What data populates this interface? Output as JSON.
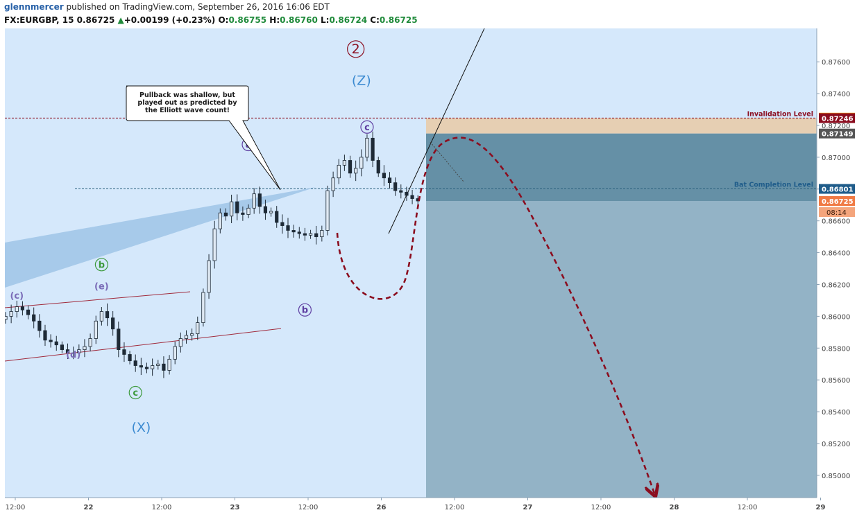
{
  "header": {
    "author": "glennmercer",
    "published": "published on TradingView.com, September 26, 2016 16:06 EDT",
    "symbol": "FX:EURGBP, 15",
    "last": "0.86725",
    "change_arrow": "▲",
    "change": "+0.00199 (+0.23%)",
    "open_label": "O:",
    "open": "0.86755",
    "high_label": "H:",
    "high": "0.86760",
    "low_label": "L:",
    "low": "0.86724",
    "close_label": "C:",
    "close": "0.86725"
  },
  "colors": {
    "plot_bg": "#d5e8fb",
    "stop_zone": "#e6cfb3",
    "target_zone": "#6590a6",
    "below_zone": "#93b3c6",
    "invalidation": "#8b0d1f",
    "bat_level": "#2a5f7d",
    "forecast": "#8b0d1f",
    "wave_purple": "#5e3ea1",
    "wave_green": "#3d9a3d",
    "wave_lavender": "#7b6db8",
    "wave_blue": "#3b8ad1"
  },
  "chart_data": {
    "type": "candlestick",
    "symbol": "FX:EURGBP",
    "interval": "15",
    "ylim": [
      0.8486,
      0.8781
    ],
    "x_ticks": [
      "12:00",
      "22",
      "12:00",
      "23",
      "12:00",
      "26",
      "12:00",
      "27",
      "12:00",
      "28",
      "12:00",
      "29"
    ],
    "y_ticks": [
      "0.87600",
      "0.87400",
      "0.87200",
      "0.87000",
      "0.86800",
      "0.86600",
      "0.86400",
      "0.86200",
      "0.86000",
      "0.85800",
      "0.85600",
      "0.85400",
      "0.85200",
      "0.85000"
    ],
    "price_tags": [
      {
        "value": 0.87249,
        "text": "0.87249",
        "color": "#f59b1f"
      },
      {
        "value": 0.87246,
        "text": "0.87246",
        "color": "#8b0d1f"
      },
      {
        "value": 0.87149,
        "text": "0.87149",
        "color": "#555555"
      },
      {
        "value": 0.86801,
        "text": "0.86801",
        "color": "#1f5c8a"
      },
      {
        "value": 0.86725,
        "text": "0.86725",
        "color": "#f07a44"
      }
    ],
    "countdown": "08:14",
    "levels": [
      {
        "name": "Invalidation Level",
        "value": 0.87246
      },
      {
        "name": "Bat Completion Level",
        "value": 0.86801
      }
    ],
    "wave_labels": [
      {
        "text": "(c)",
        "t": 2,
        "v": 0.8613,
        "color": "wave_lavender"
      },
      {
        "text": "b",
        "t": 17,
        "v": 0.86325,
        "color": "wave_green",
        "circle": true
      },
      {
        "text": "(e)",
        "t": 17,
        "v": 0.8619,
        "color": "wave_lavender"
      },
      {
        "text": "(d)",
        "t": 12,
        "v": 0.8576,
        "color": "wave_lavender"
      },
      {
        "text": "c",
        "t": 23,
        "v": 0.8552,
        "color": "wave_green",
        "circle": true
      },
      {
        "text": "(X)",
        "t": 24,
        "v": 0.853,
        "color": "wave_blue",
        "big": true
      },
      {
        "text": "a",
        "t": 43,
        "v": 0.8708,
        "color": "wave_purple",
        "circle": true
      },
      {
        "text": "b",
        "t": 53,
        "v": 0.8604,
        "color": "wave_purple",
        "circle": true
      },
      {
        "text": "c",
        "t": 64,
        "v": 0.8719,
        "color": "wave_purple",
        "circle": true
      },
      {
        "text": "(Z)",
        "t": 63,
        "v": 0.8748,
        "color": "wave_blue",
        "big": true
      },
      {
        "text": "2",
        "t": 62,
        "v": 0.8768,
        "color": "invalidation",
        "circle": true,
        "big": true
      }
    ],
    "annotation": {
      "text": [
        "Pullback was shallow, but",
        "played out as predicted by",
        "the Elliott wave count!"
      ]
    },
    "closes": [
      0.86,
      0.8603,
      0.8606,
      0.8604,
      0.8601,
      0.8597,
      0.8591,
      0.8585,
      0.8584,
      0.8582,
      0.8579,
      0.8577,
      0.8577,
      0.8579,
      0.8581,
      0.8586,
      0.8597,
      0.8603,
      0.8599,
      0.8592,
      0.8579,
      0.8576,
      0.8572,
      0.8569,
      0.8568,
      0.8567,
      0.8569,
      0.857,
      0.8566,
      0.8573,
      0.8581,
      0.8586,
      0.8588,
      0.8589,
      0.8596,
      0.8615,
      0.8635,
      0.8655,
      0.8665,
      0.8663,
      0.8672,
      0.8665,
      0.8664,
      0.8668,
      0.8677,
      0.8669,
      0.8665,
      0.8666,
      0.8659,
      0.8657,
      0.8654,
      0.8653,
      0.8652,
      0.8651,
      0.8652,
      0.865,
      0.8654,
      0.8679,
      0.8687,
      0.8695,
      0.8698,
      0.869,
      0.8693,
      0.87,
      0.8712,
      0.8698,
      0.869,
      0.8687,
      0.8684,
      0.8679,
      0.8678,
      0.8676,
      0.8674,
      0.86725
    ]
  }
}
